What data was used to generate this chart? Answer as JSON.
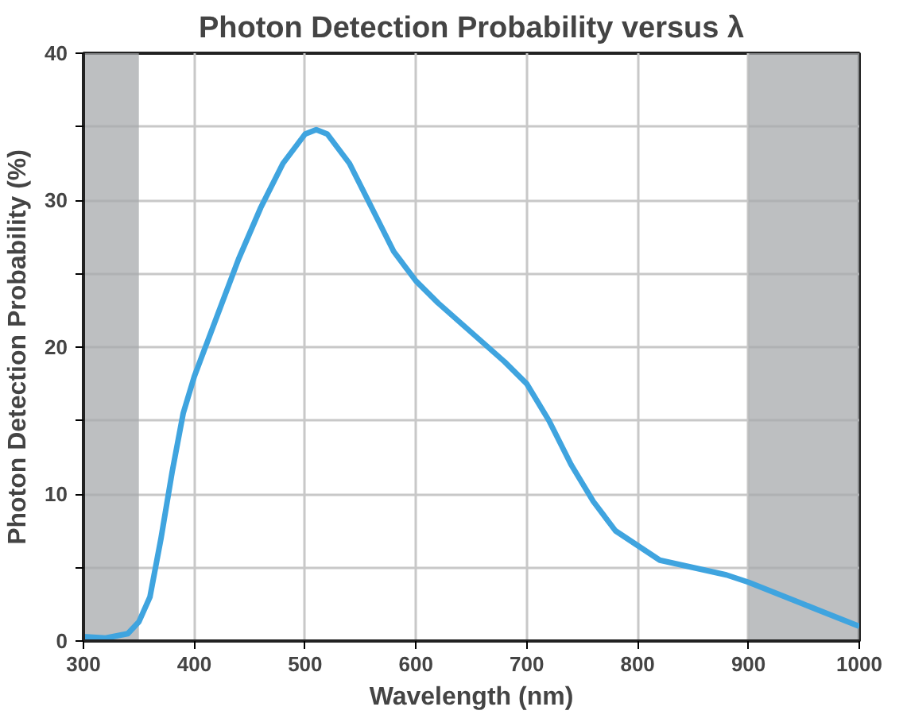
{
  "chart_data": {
    "type": "line",
    "title": "Photon Detection Probability versus λ",
    "xlabel": "Wavelength (nm)",
    "ylabel": "Photon Detection Probability (%)",
    "xlim": [
      300,
      1000
    ],
    "ylim": [
      0,
      40
    ],
    "xticks": [
      300,
      400,
      500,
      600,
      700,
      800,
      900,
      1000
    ],
    "yticks": [
      0,
      10,
      20,
      30,
      40,
      {
        "value": 5,
        "label": null
      },
      {
        "value": 15,
        "label": null
      },
      {
        "value": 25,
        "label": null
      },
      {
        "value": 35,
        "label": null
      }
    ],
    "grid": true,
    "marker": "none",
    "line_style": "solid",
    "bands": [
      {
        "axis": "x",
        "from": 300,
        "to": 350,
        "color": "#a7a9ac"
      },
      {
        "axis": "x",
        "from": 900,
        "to": 1000,
        "color": "#a7a9ac"
      }
    ],
    "series": [
      {
        "color": "#3fa4df",
        "x": [
          300,
          320,
          340,
          350,
          360,
          370,
          380,
          390,
          400,
          420,
          440,
          460,
          480,
          500,
          510,
          520,
          540,
          560,
          580,
          600,
          620,
          650,
          680,
          700,
          720,
          740,
          760,
          780,
          800,
          820,
          850,
          880,
          900,
          950,
          1000
        ],
        "values": [
          0.3,
          0.2,
          0.5,
          1.3,
          3,
          7,
          11.5,
          15.5,
          18,
          22,
          26,
          29.5,
          32.5,
          34.5,
          34.8,
          34.5,
          32.5,
          29.5,
          26.5,
          24.5,
          23,
          21,
          19,
          17.5,
          15,
          12,
          9.5,
          7.5,
          6.5,
          5.5,
          5,
          4.5,
          4,
          2.5,
          1
        ]
      }
    ]
  }
}
